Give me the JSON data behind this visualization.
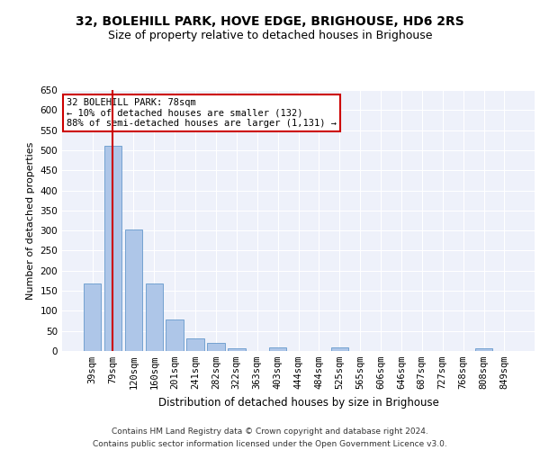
{
  "title1": "32, BOLEHILL PARK, HOVE EDGE, BRIGHOUSE, HD6 2RS",
  "title2": "Size of property relative to detached houses in Brighouse",
  "xlabel": "Distribution of detached houses by size in Brighouse",
  "ylabel": "Number of detached properties",
  "categories": [
    "39sqm",
    "79sqm",
    "120sqm",
    "160sqm",
    "201sqm",
    "241sqm",
    "282sqm",
    "322sqm",
    "363sqm",
    "403sqm",
    "444sqm",
    "484sqm",
    "525sqm",
    "565sqm",
    "606sqm",
    "646sqm",
    "687sqm",
    "727sqm",
    "768sqm",
    "808sqm",
    "849sqm"
  ],
  "values": [
    168,
    510,
    302,
    168,
    78,
    32,
    20,
    7,
    0,
    8,
    0,
    0,
    8,
    0,
    0,
    0,
    0,
    0,
    0,
    6,
    0
  ],
  "bar_color": "#aec6e8",
  "bar_edge_color": "#6699cc",
  "annotation_line1": "32 BOLEHILL PARK: 78sqm",
  "annotation_line2": "← 10% of detached houses are smaller (132)",
  "annotation_line3": "88% of semi-detached houses are larger (1,131) →",
  "annotation_box_color": "#ffffff",
  "annotation_box_edge": "#cc0000",
  "vline_x": 1.0,
  "vline_color": "#cc0000",
  "ylim": [
    0,
    650
  ],
  "yticks": [
    0,
    50,
    100,
    150,
    200,
    250,
    300,
    350,
    400,
    450,
    500,
    550,
    600,
    650
  ],
  "footer": "Contains HM Land Registry data © Crown copyright and database right 2024.\nContains public sector information licensed under the Open Government Licence v3.0.",
  "bg_color": "#eef1fa",
  "grid_color": "#ffffff",
  "title1_fontsize": 10,
  "title2_fontsize": 9,
  "xlabel_fontsize": 8.5,
  "ylabel_fontsize": 8,
  "tick_fontsize": 7.5,
  "footer_fontsize": 6.5
}
